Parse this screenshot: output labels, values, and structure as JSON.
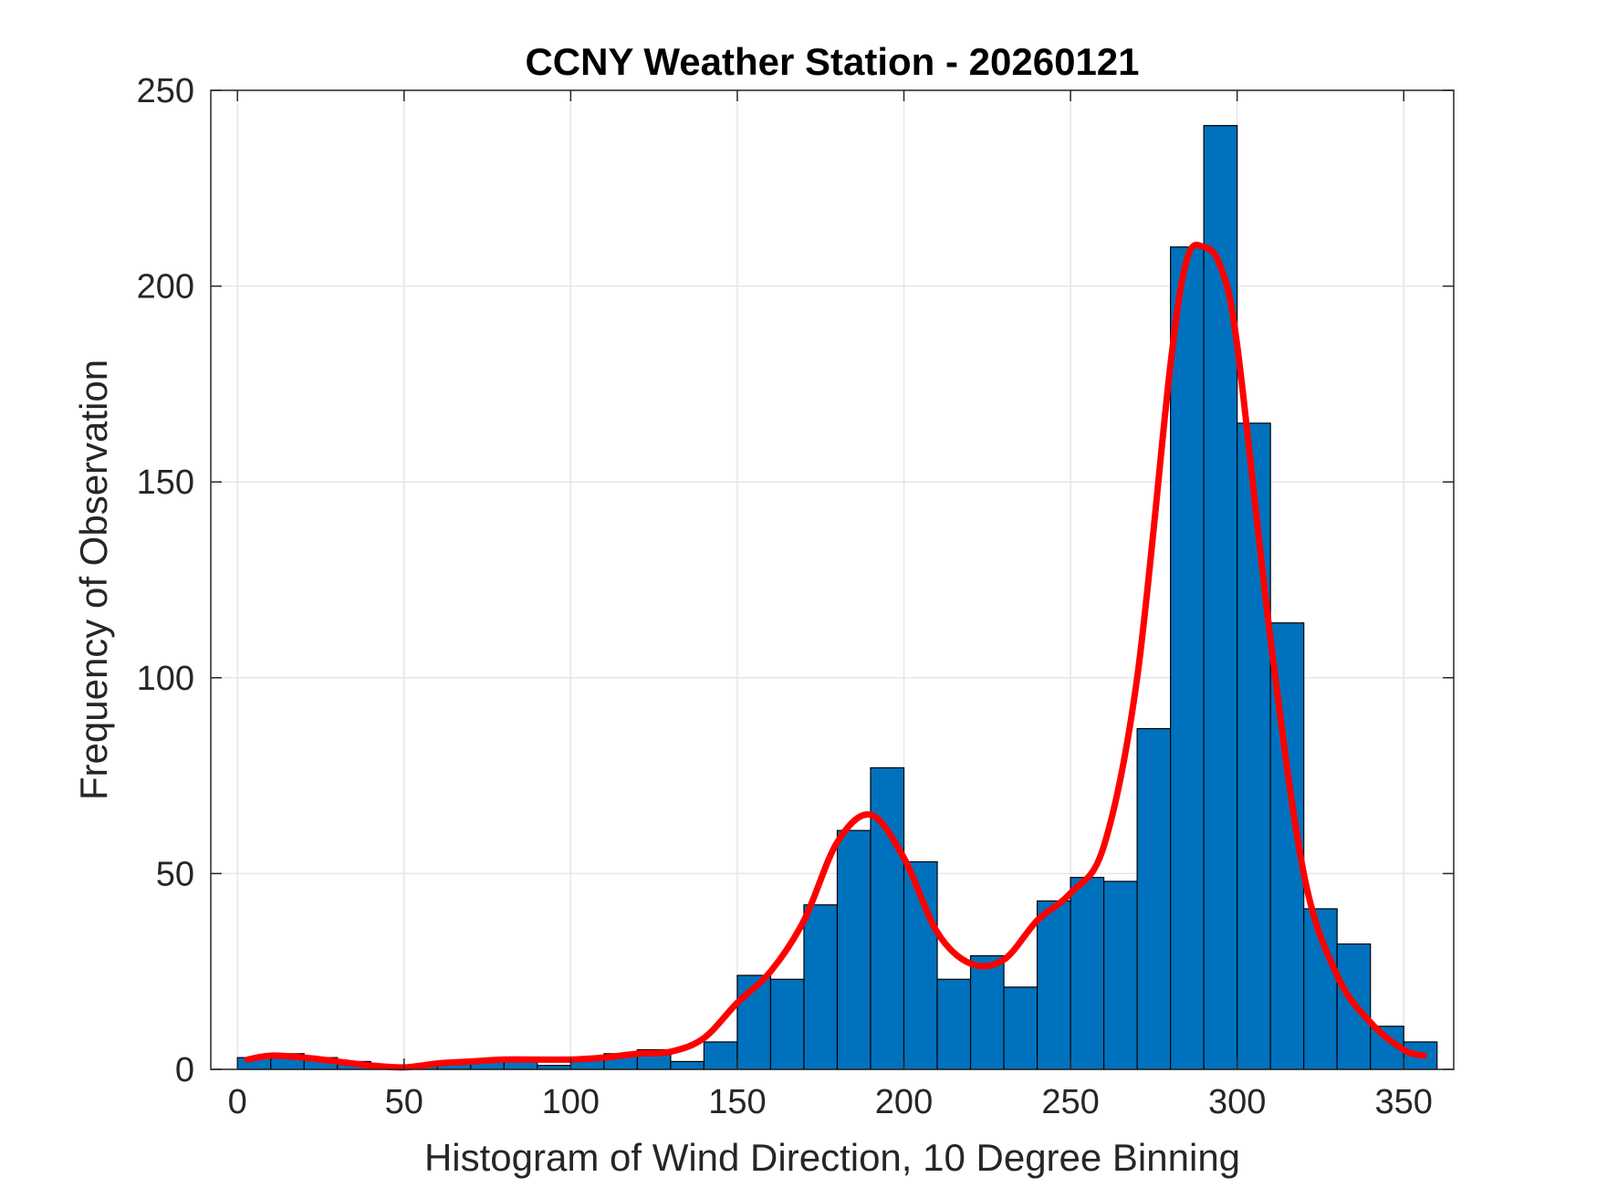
{
  "chart_data": {
    "type": "bar",
    "title": "CCNY Weather Station - 20260121",
    "xlabel": "Histogram of Wind Direction, 10 Degree Binning",
    "ylabel": "Frequency of Observation",
    "xlim": [
      -8,
      365
    ],
    "ylim": [
      0,
      250
    ],
    "xticks": [
      0,
      50,
      100,
      150,
      200,
      250,
      300,
      350
    ],
    "yticks": [
      0,
      50,
      100,
      150,
      200,
      250
    ],
    "grid": true,
    "bin_width": 10,
    "bins": [
      {
        "start": 0,
        "value": 3
      },
      {
        "start": 10,
        "value": 4
      },
      {
        "start": 20,
        "value": 3
      },
      {
        "start": 30,
        "value": 2
      },
      {
        "start": 40,
        "value": 1
      },
      {
        "start": 50,
        "value": 1
      },
      {
        "start": 60,
        "value": 2
      },
      {
        "start": 70,
        "value": 2
      },
      {
        "start": 80,
        "value": 3
      },
      {
        "start": 90,
        "value": 1
      },
      {
        "start": 100,
        "value": 3
      },
      {
        "start": 110,
        "value": 4
      },
      {
        "start": 120,
        "value": 5
      },
      {
        "start": 130,
        "value": 2
      },
      {
        "start": 140,
        "value": 7
      },
      {
        "start": 150,
        "value": 24
      },
      {
        "start": 160,
        "value": 23
      },
      {
        "start": 170,
        "value": 42
      },
      {
        "start": 180,
        "value": 61
      },
      {
        "start": 190,
        "value": 77
      },
      {
        "start": 200,
        "value": 53
      },
      {
        "start": 210,
        "value": 23
      },
      {
        "start": 220,
        "value": 29
      },
      {
        "start": 230,
        "value": 21
      },
      {
        "start": 240,
        "value": 43
      },
      {
        "start": 250,
        "value": 49
      },
      {
        "start": 260,
        "value": 48
      },
      {
        "start": 270,
        "value": 87
      },
      {
        "start": 280,
        "value": 210
      },
      {
        "start": 290,
        "value": 241
      },
      {
        "start": 300,
        "value": 165
      },
      {
        "start": 310,
        "value": 114
      },
      {
        "start": 320,
        "value": 41
      },
      {
        "start": 330,
        "value": 32
      },
      {
        "start": 340,
        "value": 11
      },
      {
        "start": 350,
        "value": 7
      }
    ],
    "fit_curve": {
      "x": [
        3,
        10,
        20,
        30,
        40,
        50,
        60,
        70,
        80,
        90,
        100,
        110,
        120,
        130,
        140,
        150,
        160,
        170,
        180,
        190,
        200,
        210,
        220,
        230,
        240,
        250,
        260,
        270,
        280,
        285,
        290,
        295,
        300,
        310,
        320,
        330,
        340,
        350,
        356
      ],
      "y": [
        2.5,
        3.5,
        3,
        2,
        1,
        0.5,
        1.5,
        2,
        2.5,
        2.5,
        2.5,
        3,
        4,
        4.5,
        8,
        17,
        25,
        38,
        58,
        65,
        54,
        35,
        27,
        28,
        38,
        45,
        57,
        100,
        180,
        207,
        210,
        205,
        185,
        110,
        50,
        24,
        12,
        5,
        3.5
      ]
    },
    "colors": {
      "bar_fill": "#0072BD",
      "bar_edge": "#000000",
      "fit_line": "#FF0000",
      "grid": "#E6E6E6",
      "axis": "#262626"
    }
  }
}
